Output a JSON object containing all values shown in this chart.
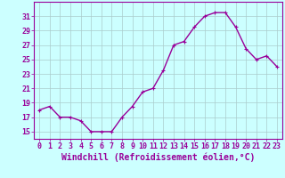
{
  "x": [
    0,
    1,
    2,
    3,
    4,
    5,
    6,
    7,
    8,
    9,
    10,
    11,
    12,
    13,
    14,
    15,
    16,
    17,
    18,
    19,
    20,
    21,
    22,
    23
  ],
  "y": [
    18.0,
    18.5,
    17.0,
    17.0,
    16.5,
    15.0,
    15.0,
    15.0,
    17.0,
    18.5,
    20.5,
    21.0,
    23.5,
    27.0,
    27.5,
    29.5,
    31.0,
    31.5,
    31.5,
    29.5,
    26.5,
    25.0,
    25.5,
    24.0
  ],
  "line_color": "#990099",
  "marker": "+",
  "marker_size": 3,
  "background_color": "#ccffff",
  "grid_color": "#aacccc",
  "xlabel": "Windchill (Refroidissement éolien,°C)",
  "ylim": [
    14,
    33
  ],
  "xlim": [
    -0.5,
    23.5
  ],
  "yticks": [
    15,
    17,
    19,
    21,
    23,
    25,
    27,
    29,
    31
  ],
  "xticks": [
    0,
    1,
    2,
    3,
    4,
    5,
    6,
    7,
    8,
    9,
    10,
    11,
    12,
    13,
    14,
    15,
    16,
    17,
    18,
    19,
    20,
    21,
    22,
    23
  ],
  "tick_color": "#990099",
  "xlabel_color": "#990099",
  "xlabel_fontsize": 7,
  "tick_fontsize": 6,
  "line_width": 1.0,
  "marker_edge_width": 0.8
}
